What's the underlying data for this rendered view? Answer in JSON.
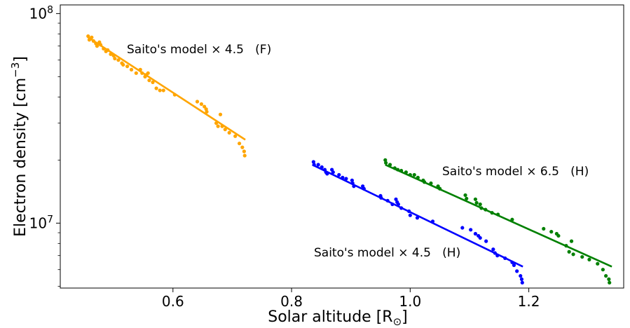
{
  "chart_data": {
    "type": "scatter",
    "xlabel": "Solar altitude [R",
    "xlabel_symbol": "⊙",
    "xlabel_close": "]",
    "ylabel": "Electron density [cm",
    "ylabel_exp": "−3",
    "ylabel_close": "]",
    "yscale": "log",
    "xlim": [
      0.41,
      1.36
    ],
    "ylim": [
      4900000,
      110000000
    ],
    "xticks": [
      0.6,
      0.8,
      1.0,
      1.2
    ],
    "xtick_labels": [
      "0.6",
      "0.8",
      "1.0",
      "1.2"
    ],
    "yticks": [
      {
        "base": "10",
        "exp": "7",
        "value": 10000000
      },
      {
        "base": "10",
        "exp": "8",
        "value": 100000000
      }
    ],
    "series": [
      {
        "annotation": "Saito's model × 4.5   (F)",
        "color": "#ffa500",
        "fit": [
          [
            0.457,
            77000000
          ],
          [
            0.722,
            25000000
          ]
        ],
        "points": [
          [
            0.457,
            78000000
          ],
          [
            0.459,
            75000000
          ],
          [
            0.463,
            77000000
          ],
          [
            0.466,
            74000000
          ],
          [
            0.47,
            72000000
          ],
          [
            0.472,
            70000000
          ],
          [
            0.476,
            73000000
          ],
          [
            0.478,
            71000000
          ],
          [
            0.483,
            68000000
          ],
          [
            0.487,
            66000000
          ],
          [
            0.49,
            67000000
          ],
          [
            0.495,
            64000000
          ],
          [
            0.5,
            63000000
          ],
          [
            0.502,
            61000000
          ],
          [
            0.508,
            60000000
          ],
          [
            0.514,
            58000000
          ],
          [
            0.516,
            57000000
          ],
          [
            0.523,
            56000000
          ],
          [
            0.53,
            54000000
          ],
          [
            0.538,
            52000000
          ],
          [
            0.545,
            54000000
          ],
          [
            0.548,
            52000000
          ],
          [
            0.553,
            50000000
          ],
          [
            0.555,
            51000000
          ],
          [
            0.558,
            52000000
          ],
          [
            0.56,
            48000000
          ],
          [
            0.566,
            47000000
          ],
          [
            0.572,
            44000000
          ],
          [
            0.578,
            43000000
          ],
          [
            0.584,
            43000000
          ],
          [
            0.603,
            41000000
          ],
          [
            0.641,
            38000000
          ],
          [
            0.648,
            37000000
          ],
          [
            0.653,
            36000000
          ],
          [
            0.656,
            35000000
          ],
          [
            0.657,
            34000000
          ],
          [
            0.673,
            30000000
          ],
          [
            0.676,
            29000000
          ],
          [
            0.68,
            33000000
          ],
          [
            0.683,
            29000000
          ],
          [
            0.688,
            28000000
          ],
          [
            0.695,
            27000000
          ],
          [
            0.705,
            26000000
          ],
          [
            0.712,
            24000000
          ],
          [
            0.717,
            23000000
          ],
          [
            0.72,
            22000000
          ],
          [
            0.721,
            21000000
          ]
        ]
      },
      {
        "annotation": "Saito's model × 4.5   (H)",
        "color": "#0000ff",
        "fit": [
          [
            0.835,
            19000000
          ],
          [
            1.19,
            6200000
          ]
        ],
        "points": [
          [
            0.837,
            19600000
          ],
          [
            0.838,
            19000000
          ],
          [
            0.845,
            19000000
          ],
          [
            0.851,
            18500000
          ],
          [
            0.856,
            18000000
          ],
          [
            0.858,
            17500000
          ],
          [
            0.86,
            17200000
          ],
          [
            0.868,
            18000000
          ],
          [
            0.87,
            17500000
          ],
          [
            0.88,
            17000000
          ],
          [
            0.886,
            16500000
          ],
          [
            0.892,
            16300000
          ],
          [
            0.902,
            16000000
          ],
          [
            0.903,
            15500000
          ],
          [
            0.905,
            15000000
          ],
          [
            0.92,
            15000000
          ],
          [
            0.922,
            14600000
          ],
          [
            0.95,
            13500000
          ],
          [
            0.951,
            13200000
          ],
          [
            0.962,
            12800000
          ],
          [
            0.97,
            12300000
          ],
          [
            0.976,
            13000000
          ],
          [
            0.978,
            12600000
          ],
          [
            0.98,
            12300000
          ],
          [
            0.985,
            11800000
          ],
          [
            0.998,
            11400000
          ],
          [
            1.0,
            10900000
          ],
          [
            1.012,
            10600000
          ],
          [
            1.038,
            10200000
          ],
          [
            1.088,
            9500000
          ],
          [
            1.102,
            9300000
          ],
          [
            1.11,
            8900000
          ],
          [
            1.115,
            8700000
          ],
          [
            1.118,
            8500000
          ],
          [
            1.128,
            8200000
          ],
          [
            1.14,
            7500000
          ],
          [
            1.143,
            7200000
          ],
          [
            1.147,
            7000000
          ],
          [
            1.16,
            6800000
          ],
          [
            1.172,
            6500000
          ],
          [
            1.175,
            6300000
          ],
          [
            1.18,
            5900000
          ],
          [
            1.186,
            5600000
          ],
          [
            1.188,
            5400000
          ],
          [
            1.189,
            5200000
          ]
        ]
      },
      {
        "annotation": "Saito's model × 6.5   (H)",
        "color": "#008000",
        "fit": [
          [
            0.958,
            19000000
          ],
          [
            1.34,
            6200000
          ]
        ],
        "points": [
          [
            0.958,
            20000000
          ],
          [
            0.959,
            19400000
          ],
          [
            0.966,
            19000000
          ],
          [
            0.974,
            18300000
          ],
          [
            0.979,
            18000000
          ],
          [
            0.985,
            17800000
          ],
          [
            0.993,
            17500000
          ],
          [
            1.0,
            17000000
          ],
          [
            1.007,
            17000000
          ],
          [
            1.013,
            16500000
          ],
          [
            1.022,
            16000000
          ],
          [
            1.024,
            15700000
          ],
          [
            1.035,
            15500000
          ],
          [
            1.047,
            15000000
          ],
          [
            1.05,
            14600000
          ],
          [
            1.093,
            13600000
          ],
          [
            1.095,
            13100000
          ],
          [
            1.11,
            13000000
          ],
          [
            1.112,
            12500000
          ],
          [
            1.118,
            12300000
          ],
          [
            1.12,
            11800000
          ],
          [
            1.127,
            11600000
          ],
          [
            1.138,
            11200000
          ],
          [
            1.148,
            11000000
          ],
          [
            1.172,
            10400000
          ],
          [
            1.225,
            9400000
          ],
          [
            1.238,
            9100000
          ],
          [
            1.247,
            8900000
          ],
          [
            1.25,
            8700000
          ],
          [
            1.263,
            7800000
          ],
          [
            1.268,
            7300000
          ],
          [
            1.272,
            8200000
          ],
          [
            1.275,
            7100000
          ],
          [
            1.29,
            6900000
          ],
          [
            1.302,
            6700000
          ],
          [
            1.316,
            6400000
          ],
          [
            1.325,
            6000000
          ],
          [
            1.33,
            5600000
          ],
          [
            1.335,
            5400000
          ],
          [
            1.336,
            5200000
          ]
        ]
      }
    ]
  }
}
